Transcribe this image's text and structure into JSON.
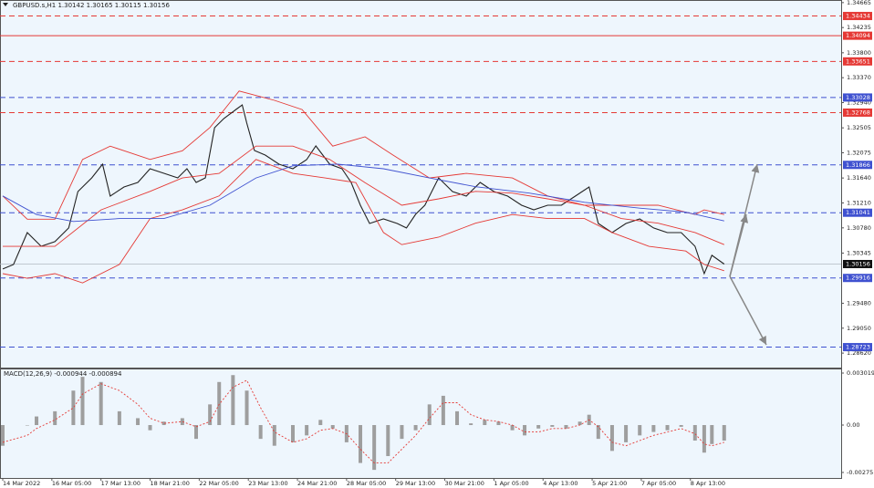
{
  "chart_data": [
    {
      "type": "line",
      "title": "GBPUSD.s,H1  1.30142 1.30165 1.30115 1.30156",
      "xlim": [
        0,
        548
      ],
      "ylim": [
        1.2837,
        1.3471
      ],
      "yticks": [
        1.34665,
        1.34235,
        {
          "value": 1.338,
          "label": "1.33800"
        },
        {
          "value": 1.3337,
          "label": "1.33370"
        },
        {
          "value": 1.3294,
          "label": "1.32940"
        },
        1.32505,
        1.32075,
        {
          "value": 1.3164,
          "label": "1.31640"
        },
        {
          "value": 1.3121,
          "label": "1.31210"
        },
        {
          "value": 1.3078,
          "label": "1.30780"
        },
        1.30345,
        {
          "value": 1.2948,
          "label": "1.29480"
        },
        {
          "value": 1.2905,
          "label": "1.29050"
        },
        {
          "value": 1.2862,
          "label": "1.28620"
        }
      ],
      "levels": [
        {
          "value": 1.34434,
          "color": "#e53935",
          "style": "dashed"
        },
        {
          "value": 1.34094,
          "color": "#e53935",
          "style": "solid"
        },
        {
          "value": 1.33651,
          "color": "#e53935",
          "style": "dashed"
        },
        {
          "value": 1.33028,
          "color": "#3f51d0",
          "style": "dashed"
        },
        {
          "value": 1.32768,
          "color": "#e53935",
          "style": "dashed"
        },
        {
          "value": 1.31866,
          "color": "#3f51d0",
          "style": "dashed"
        },
        {
          "value": 1.31041,
          "color": "#3f51d0",
          "style": "dashed"
        },
        {
          "value": 1.29916,
          "color": "#3f51d0",
          "style": "dashed"
        },
        {
          "value": 1.28723,
          "color": "#3f51d0",
          "style": "dashed"
        }
      ],
      "last": 1.30156,
      "series": [
        {
          "color": "#222222",
          "x": [
            0,
            7,
            16,
            25,
            34,
            43,
            49,
            58,
            65,
            70,
            79,
            88,
            96,
            105,
            114,
            120,
            126,
            132,
            138,
            144,
            152,
            156,
            159,
            164,
            171,
            180,
            189,
            198,
            204,
            213,
            221,
            227,
            233,
            239,
            248,
            257,
            263,
            269,
            275,
            284,
            293,
            302,
            311,
            320,
            329,
            338,
            346,
            355,
            364,
            373,
            382,
            388,
            397,
            406,
            415,
            424,
            433,
            442,
            451,
            457,
            462,
            470
          ],
          "values": [
            1.3007,
            1.30148,
            1.30699,
            1.30463,
            1.30542,
            1.30778,
            1.31407,
            1.31643,
            1.31879,
            1.31328,
            1.31485,
            1.31564,
            1.318,
            1.31721,
            1.31643,
            1.318,
            1.31564,
            1.31643,
            1.32508,
            1.32665,
            1.32822,
            1.32901,
            1.32586,
            1.32114,
            1.32036,
            1.31879,
            1.318,
            1.31957,
            1.32193,
            1.31879,
            1.318,
            1.31564,
            1.31171,
            1.30856,
            1.30935,
            1.30856,
            1.30778,
            1.31014,
            1.31171,
            1.31643,
            1.31407,
            1.31328,
            1.31564,
            1.31407,
            1.31328,
            1.31171,
            1.31092,
            1.31171,
            1.31171,
            1.31328,
            1.31485,
            1.30856,
            1.30699,
            1.30856,
            1.30935,
            1.30778,
            1.30699,
            1.30699,
            1.30463,
            1.29991,
            1.30306,
            1.30156
          ]
        },
        {
          "color": "#e53935",
          "x": [
            0,
            16,
            34,
            52,
            70,
            96,
            117,
            135,
            154,
            177,
            195,
            215,
            236,
            254,
            278,
            302,
            332,
            355,
            379,
            403,
            427,
            451,
            457,
            470
          ],
          "values": [
            1.3133,
            1.3093,
            1.3093,
            1.3196,
            1.3219,
            1.3196,
            1.3211,
            1.3251,
            1.3314,
            1.3298,
            1.3282,
            1.3219,
            1.3235,
            1.3204,
            1.3164,
            1.3172,
            1.3164,
            1.3133,
            1.3117,
            1.3117,
            1.3117,
            1.3101,
            1.3109,
            1.3101
          ]
        },
        {
          "color": "#e53935",
          "x": [
            0,
            16,
            34,
            52,
            76,
            96,
            117,
            141,
            165,
            189,
            210,
            230,
            248,
            260,
            284,
            308,
            332,
            355,
            379,
            397,
            421,
            445,
            457,
            470
          ],
          "values": [
            1.2999,
            1.2991,
            1.2999,
            1.2983,
            1.3015,
            1.3094,
            1.3109,
            1.3133,
            1.3196,
            1.3172,
            1.3164,
            1.3156,
            1.307,
            1.3049,
            1.3062,
            1.3086,
            1.3101,
            1.3094,
            1.3094,
            1.307,
            1.3046,
            1.3038,
            1.3015,
            1.3004
          ]
        },
        {
          "color": "#e53935",
          "x": [
            0,
            34,
            64,
            96,
            117,
            141,
            165,
            189,
            213,
            236,
            260,
            284,
            308,
            332,
            355,
            379,
            403,
            427,
            451,
            470
          ],
          "values": [
            1.3046,
            1.3046,
            1.3109,
            1.3141,
            1.3164,
            1.3172,
            1.3219,
            1.3219,
            1.3196,
            1.3156,
            1.3117,
            1.3128,
            1.3141,
            1.3138,
            1.3128,
            1.3117,
            1.3094,
            1.3086,
            1.307,
            1.3049
          ]
        },
        {
          "color": "#3f51d0",
          "x": [
            0,
            22,
            46,
            76,
            105,
            135,
            165,
            189,
            218,
            248,
            278,
            308,
            343,
            379,
            415,
            445,
            470
          ],
          "values": [
            1.3133,
            1.3101,
            1.3089,
            1.3094,
            1.3094,
            1.3117,
            1.3164,
            1.3185,
            1.3188,
            1.318,
            1.3164,
            1.3149,
            1.3138,
            1.3122,
            1.3112,
            1.3105,
            1.309
          ]
        }
      ]
    },
    {
      "type": "bar",
      "title": "MACD(12,26,9) -0.000944 -0.000894",
      "xlim": [
        0,
        548
      ],
      "ylim": [
        -0.00307,
        0.00323
      ],
      "yticks": [
        0.003019,
        {
          "value": 0,
          "label": "0.00"
        },
        -0.00275
      ],
      "xticks": [
        {
          "value": 0,
          "label": "14 Mar 2022"
        },
        {
          "value": 32,
          "label": "16 Mar 05:00"
        },
        {
          "value": 64,
          "label": "17 Mar 13:00"
        },
        {
          "value": 96,
          "label": "18 Mar 21:00"
        },
        {
          "value": 128,
          "label": "22 Mar 05:00"
        },
        {
          "value": 160,
          "label": "23 Mar 13:00"
        },
        {
          "value": 192,
          "label": "24 Mar 21:00"
        },
        {
          "value": 224,
          "label": "28 Mar 05:00"
        },
        {
          "value": 256,
          "label": "29 Mar 13:00"
        },
        {
          "value": 288,
          "label": "30 Mar 21:00"
        },
        {
          "value": 320,
          "label": "1 Apr 05:00"
        },
        {
          "value": 352,
          "label": "4 Apr 13:00"
        },
        {
          "value": 384,
          "label": "5 Apr 21:00"
        },
        {
          "value": 416,
          "label": "7 Apr 05:00"
        },
        {
          "value": 448,
          "label": "8 Apr 13:00"
        }
      ],
      "x": [
        0,
        16,
        22,
        34,
        46,
        52,
        64,
        76,
        88,
        96,
        105,
        117,
        126,
        135,
        141,
        150,
        159,
        168,
        177,
        189,
        198,
        207,
        215,
        224,
        233,
        242,
        251,
        260,
        269,
        278,
        287,
        296,
        305,
        314,
        323,
        332,
        340,
        349,
        358,
        367,
        376,
        382,
        388,
        397,
        406,
        415,
        424,
        433,
        442,
        451,
        457,
        462,
        470
      ],
      "series": [
        {
          "color": "#9e9e9e",
          "values": [
            -0.0012,
            0,
            0.0005,
            0.0008,
            0.002,
            0.0028,
            0.0025,
            0.0008,
            0.0004,
            -0.0003,
            0.0002,
            0.0004,
            -0.0008,
            0.0012,
            0.0025,
            0.0029,
            0.002,
            -0.0008,
            -0.0012,
            -0.001,
            -0.0006,
            0.0003,
            -0.0002,
            -0.001,
            -0.0022,
            -0.0026,
            -0.0018,
            -0.0008,
            -0.0003,
            0.0012,
            0.0017,
            0.0008,
            0.0001,
            0.0003,
            0.0002,
            -0.0003,
            -0.0006,
            -0.0002,
            -0.0001,
            -0.0002,
            0.0002,
            0.0006,
            -0.0008,
            -0.0015,
            -0.001,
            -0.0006,
            -0.0004,
            -0.0003,
            -0.0001,
            -0.0009,
            -0.0016,
            -0.0011,
            -0.0009
          ]
        },
        {
          "color": "#e53935",
          "values": [
            -0.001,
            -0.0006,
            -0.0002,
            0.0003,
            0.001,
            0.0018,
            0.0024,
            0.002,
            0.0012,
            0.0004,
            0.0001,
            0.0002,
            -0.0001,
            0.0002,
            0.0012,
            0.0022,
            0.0026,
            0.001,
            -0.0004,
            -0.001,
            -0.0008,
            -0.0003,
            -0.0002,
            -0.0005,
            -0.0014,
            -0.0022,
            -0.0022,
            -0.0014,
            -0.0006,
            0.0004,
            0.0013,
            0.0013,
            0.0006,
            0.0003,
            0.0002,
            0,
            -0.0004,
            -0.0004,
            -0.0002,
            -0.0002,
            0,
            0.0003,
            -0.0001,
            -0.001,
            -0.0012,
            -0.0009,
            -0.0006,
            -0.0004,
            -0.0002,
            -0.0005,
            -0.0011,
            -0.0012,
            -0.001
          ]
        }
      ]
    }
  ]
}
